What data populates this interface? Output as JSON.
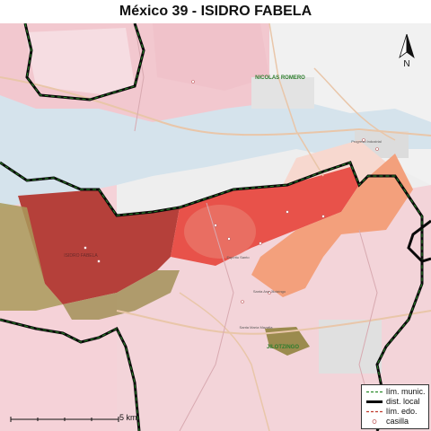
{
  "title": "México 39 - ISIDRO FABELA",
  "map": {
    "colors": {
      "background": "#eeeeee",
      "water": "#d5e3ec",
      "municipality_fill": "#f2c8cf",
      "municipality_fill_light": "#f6dde2",
      "district_fill": "#c0392b",
      "section_salmon": "#f08a6e",
      "section_red": "#e8524a",
      "section_orange": "#f3a07c",
      "state_boundary_highlight": "#2a8a2a",
      "olive": "#9b8b4e",
      "road": "#e9c6a9",
      "grey_block": "#d9d9d9"
    },
    "place_labels": [
      {
        "text": "NICOLAS ROMERO",
        "color": "#2d7d2d"
      },
      {
        "text": "JILOTZINGO",
        "color": "#2d7d2d"
      },
      {
        "text": "ISIDRO FABELA",
        "color": "#6b2a2a"
      },
      {
        "text": "Santa Ana Jilotzingo",
        "color": "#555555"
      },
      {
        "text": "Santa María Mazatla",
        "color": "#555555"
      },
      {
        "text": "Espíritu Santo",
        "color": "#555555"
      },
      {
        "text": "Progreso Industrial",
        "color": "#555555"
      }
    ]
  },
  "north_arrow": {
    "letter": "N"
  },
  "scale": {
    "label": "5 km"
  },
  "legend": {
    "items": [
      {
        "label": "lím. munic.",
        "symbol": "dashed-green-line",
        "color": "#2a8a2a"
      },
      {
        "label": "dist. local",
        "symbol": "thick-black-line",
        "color": "#000000"
      },
      {
        "label": "lím. edo.",
        "symbol": "dashed-red-line",
        "color": "#c0392b"
      },
      {
        "label": "casilla",
        "symbol": "circle-marker",
        "color": "#c06060"
      }
    ]
  }
}
